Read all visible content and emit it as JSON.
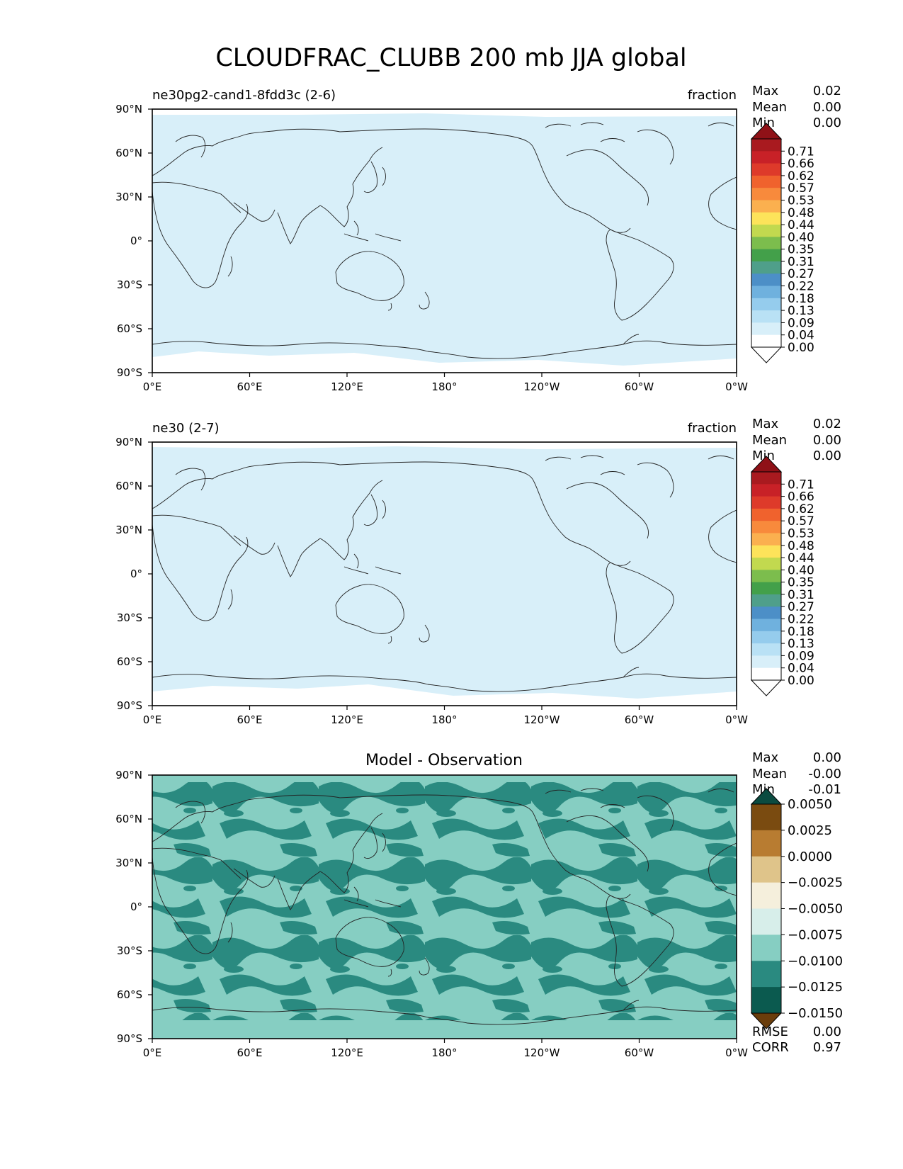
{
  "title": "CLOUDFRAC_CLUBB 200 mb JJA global",
  "lat_ticks": [
    "90°N",
    "60°N",
    "30°N",
    "0°",
    "30°S",
    "60°S",
    "90°S"
  ],
  "lon_ticks": [
    "0°E",
    "60°E",
    "120°E",
    "180°",
    "120°W",
    "60°W",
    "0°W"
  ],
  "stat_labels": {
    "max": "Max",
    "mean": "Mean",
    "min": "Min",
    "rmse": "RMSE",
    "corr": "CORR"
  },
  "panels": [
    {
      "id": "test",
      "left_title": "ne30pg2-cand1-8fdd3c (2-6)",
      "right_title": "fraction",
      "stats": {
        "max": "0.02",
        "mean": "0.00",
        "min": "0.00"
      },
      "fill_color": "#d8eff9",
      "colorbar_labels": [
        "0.71",
        "0.66",
        "0.62",
        "0.57",
        "0.53",
        "0.48",
        "0.44",
        "0.40",
        "0.35",
        "0.31",
        "0.27",
        "0.22",
        "0.18",
        "0.13",
        "0.09",
        "0.04",
        "0.00"
      ]
    },
    {
      "id": "ref",
      "left_title": "ne30 (2-7)",
      "right_title": "fraction",
      "stats": {
        "max": "0.02",
        "mean": "0.00",
        "min": "0.00"
      },
      "fill_color": "#d8eff9",
      "colorbar_labels": [
        "0.71",
        "0.66",
        "0.62",
        "0.57",
        "0.53",
        "0.48",
        "0.44",
        "0.40",
        "0.35",
        "0.31",
        "0.27",
        "0.22",
        "0.18",
        "0.13",
        "0.09",
        "0.04",
        "0.00"
      ]
    },
    {
      "id": "diff",
      "center_title": "Model - Observation",
      "stats": {
        "max": "0.00",
        "mean": "-0.00",
        "min": "-0.01"
      },
      "extra_stats": {
        "rmse": "0.00",
        "corr": "0.97"
      },
      "colorbar_labels": [
        "0.0050",
        "0.0025",
        "0.0000",
        "−0.0025",
        "−0.0050",
        "−0.0075",
        "−0.0100",
        "−0.0125",
        "−0.0150"
      ]
    }
  ],
  "colormaps": {
    "fraction": {
      "over": "#8f1117",
      "under": "#ffffff",
      "bins": [
        "#ffffff",
        "#d8eff9",
        "#b9e1f5",
        "#95cced",
        "#6fb1de",
        "#4c8fc7",
        "#4f9f8a",
        "#43a04a",
        "#7cbd4d",
        "#c2d94f",
        "#fde35a",
        "#fbb04f",
        "#f88a3c",
        "#f0622d",
        "#de3a2a",
        "#c82127",
        "#a91a1f"
      ]
    },
    "diff": {
      "over": "#0a4b40",
      "under": "#6a3d0b",
      "bins": [
        "#0b5a4f",
        "#2a8a80",
        "#86cec2",
        "#d7eeea",
        "#f5efdc",
        "#dfc48a",
        "#b87c31",
        "#7a4b10"
      ]
    }
  }
}
